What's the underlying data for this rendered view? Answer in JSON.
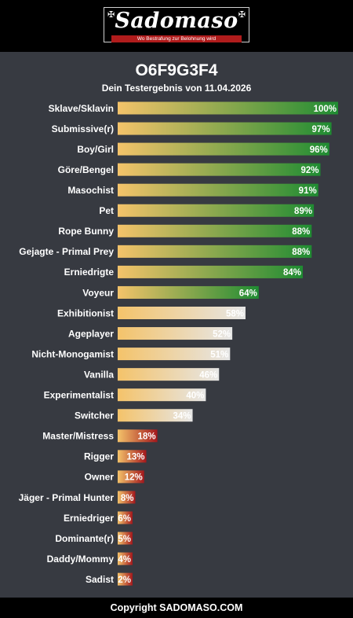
{
  "brand": {
    "logo_text": "Sadomaso",
    "tagline": "Wo Bestrafung zur Belohnung wird"
  },
  "header": {
    "title": "O6F9G3F4",
    "subtitle": "Dein Testergebnis von 11.04.2026"
  },
  "footer": {
    "copyright": "Copyright SADOMASO.COM"
  },
  "colors": {
    "bar_start": "#f4c36a",
    "high_end": "#1f8c32",
    "mid_end": "#e6e6e6",
    "low_end": "#a3171c",
    "panel_bg": "#373a41"
  },
  "chart_data": {
    "type": "bar",
    "orientation": "horizontal",
    "title": "Dein Testergebnis von 11.04.2026",
    "xlim": [
      0,
      100
    ],
    "unit": "%",
    "grid": false,
    "legend": "none",
    "categories": [
      "Sklave/Sklavin",
      "Submissive(r)",
      "Boy/Girl",
      "Göre/Bengel",
      "Masochist",
      "Pet",
      "Rope Bunny",
      "Gejagte - Primal Prey",
      "Erniedrigte",
      "Voyeur",
      "Exhibitionist",
      "Ageplayer",
      "Nicht-Monogamist",
      "Vanilla",
      "Experimentalist",
      "Switcher",
      "Master/Mistress",
      "Rigger",
      "Owner",
      "Jäger - Primal Hunter",
      "Erniedriger",
      "Dominante(r)",
      "Daddy/Mommy",
      "Sadist"
    ],
    "values": [
      100,
      97,
      96,
      92,
      91,
      89,
      88,
      88,
      84,
      64,
      58,
      52,
      51,
      46,
      40,
      34,
      18,
      13,
      12,
      8,
      6,
      5,
      4,
      2
    ],
    "labels": [
      "100%",
      "97%",
      "96%",
      "92%",
      "91%",
      "89%",
      "88%",
      "88%",
      "84%",
      "64%",
      "58%",
      "52%",
      "51%",
      "46%",
      "40%",
      "34%",
      "18%",
      "13%",
      "12%",
      "8%",
      "6%",
      "5%",
      "4%",
      "2%"
    ]
  }
}
